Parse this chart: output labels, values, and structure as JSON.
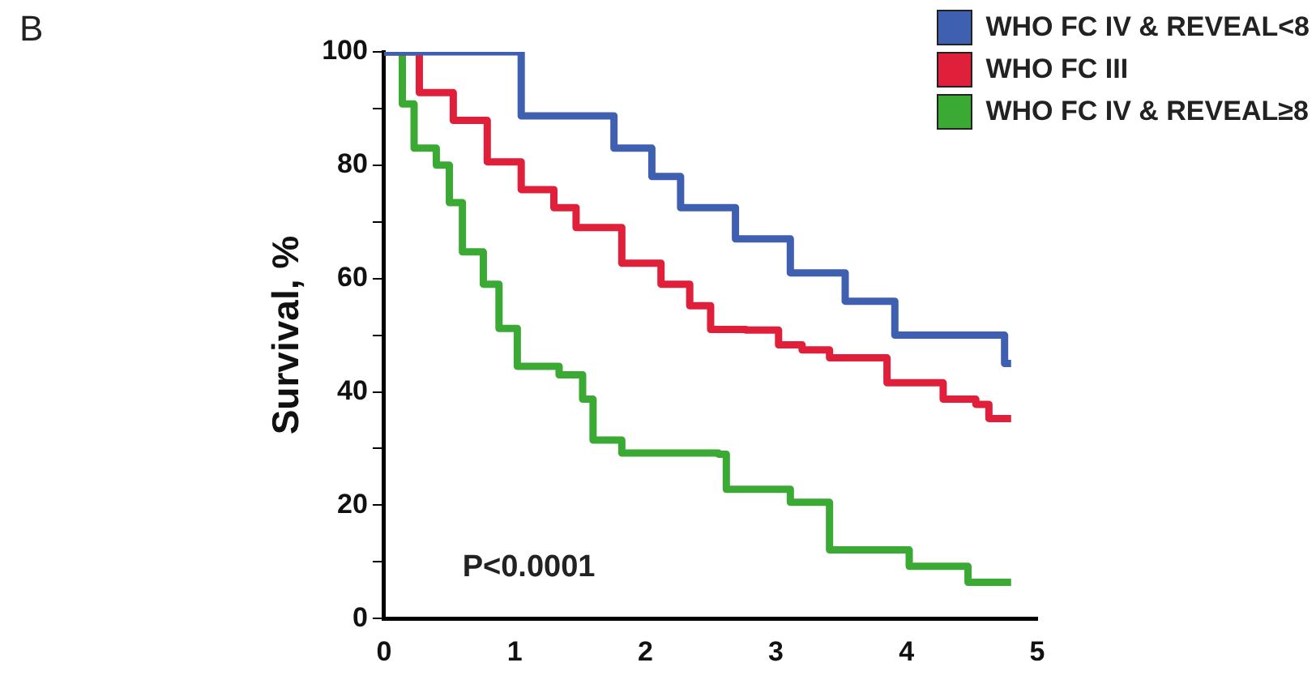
{
  "chart_data": {
    "type": "step",
    "ylabel": "Survival, %",
    "annotations": [
      "B",
      "P<0.0001"
    ],
    "xlim": [
      0,
      5
    ],
    "xticks": [
      0,
      1,
      2,
      3,
      4,
      5
    ],
    "ylim": [
      0,
      100
    ],
    "yticks": [
      0,
      {
        "value": 10,
        "label": null
      },
      20,
      {
        "value": 30,
        "label": null
      },
      40,
      {
        "value": 50,
        "label": null
      },
      60,
      {
        "value": 70,
        "label": null
      },
      80,
      {
        "value": 90,
        "label": null
      },
      100
    ],
    "grid": false,
    "legend": "top right",
    "marker": "none",
    "line_style": "solid",
    "series": [
      {
        "name": "WHO FC IV & REVEAL<8",
        "color": "#3f5fb0",
        "x": [
          0,
          1.05,
          1.76,
          2.05,
          2.27,
          2.69,
          3.11,
          3.53,
          3.91,
          4.75,
          4.8
        ],
        "values": [
          100,
          88.7,
          83,
          78,
          72.5,
          67,
          61,
          56,
          50,
          45,
          45
        ]
      },
      {
        "name": "WHO FC III",
        "color": "#e0203a",
        "x": [
          0,
          0.27,
          0.53,
          0.79,
          1.05,
          1.3,
          1.47,
          1.82,
          2.12,
          2.34,
          2.5,
          2.77,
          3.02,
          3.2,
          3.41,
          3.85,
          4.28,
          4.53,
          4.63,
          4.8
        ],
        "values": [
          100,
          92.8,
          87.9,
          80.6,
          75.7,
          72.5,
          69,
          62.7,
          59,
          55.2,
          51,
          50.9,
          48.3,
          47.4,
          46,
          41.6,
          38.7,
          37.8,
          35.3,
          35.3
        ]
      },
      {
        "name": "WHO FC IV & REVEAL≥8",
        "color": "#3aaa35",
        "x": [
          0,
          0.14,
          0.23,
          0.4,
          0.5,
          0.6,
          0.76,
          0.88,
          1.02,
          1.34,
          1.52,
          1.6,
          1.82,
          2.56,
          2.62,
          3.11,
          3.41,
          4.02,
          4.47,
          4.8
        ],
        "values": [
          100,
          90.8,
          83,
          80,
          73.4,
          64.7,
          59,
          51.2,
          44.5,
          43,
          38.7,
          31.5,
          29.2,
          29,
          22.8,
          20.5,
          12.1,
          9.2,
          6.4,
          6.4
        ]
      }
    ]
  }
}
